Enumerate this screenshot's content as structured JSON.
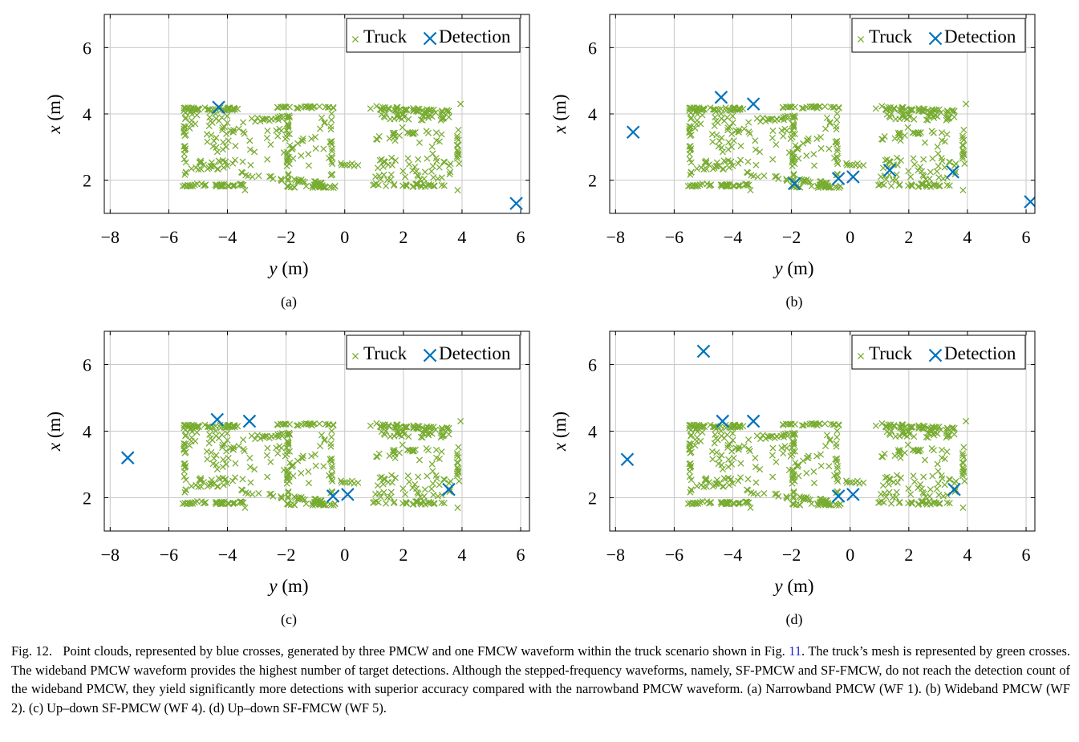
{
  "chart_data": [
    {
      "type": "scatter",
      "panel_label": "(a)",
      "xlabel_var": "y",
      "xlabel_unit": "(m)",
      "ylabel_var": "x",
      "ylabel_unit": "(m)",
      "xlim": [
        -8.2,
        6.3
      ],
      "ylim": [
        1.0,
        7.0
      ],
      "xticks": [
        -8,
        -6,
        -4,
        -2,
        0,
        2,
        4,
        6
      ],
      "yticks": [
        2,
        4,
        6
      ],
      "grid": true,
      "legend_position": "top-right",
      "series": [
        {
          "name": "Truck",
          "color": "#77ac30",
          "marker": "x-small",
          "generated": "truck_mesh"
        },
        {
          "name": "Detection",
          "color": "#0072bd",
          "marker": "x-large",
          "points": [
            [
              -4.3,
              4.2
            ],
            [
              5.85,
              1.3
            ]
          ]
        }
      ]
    },
    {
      "type": "scatter",
      "panel_label": "(b)",
      "xlabel_var": "y",
      "xlabel_unit": "(m)",
      "ylabel_var": "x",
      "ylabel_unit": "(m)",
      "xlim": [
        -8.2,
        6.3
      ],
      "ylim": [
        1.0,
        7.0
      ],
      "xticks": [
        -8,
        -6,
        -4,
        -2,
        0,
        2,
        4,
        6
      ],
      "yticks": [
        2,
        4,
        6
      ],
      "grid": true,
      "legend_position": "top-right",
      "series": [
        {
          "name": "Truck",
          "color": "#77ac30",
          "marker": "x-small",
          "generated": "truck_mesh"
        },
        {
          "name": "Detection",
          "color": "#0072bd",
          "marker": "x-large",
          "points": [
            [
              -7.4,
              3.45
            ],
            [
              -4.4,
              4.5
            ],
            [
              -3.3,
              4.3
            ],
            [
              -1.9,
              1.9
            ],
            [
              -0.4,
              2.05
            ],
            [
              0.1,
              2.1
            ],
            [
              1.35,
              2.3
            ],
            [
              3.5,
              2.25
            ],
            [
              6.15,
              1.35
            ]
          ]
        }
      ]
    },
    {
      "type": "scatter",
      "panel_label": "(c)",
      "xlabel_var": "y",
      "xlabel_unit": "(m)",
      "ylabel_var": "x",
      "ylabel_unit": "(m)",
      "xlim": [
        -8.2,
        6.3
      ],
      "ylim": [
        1.0,
        7.0
      ],
      "xticks": [
        -8,
        -6,
        -4,
        -2,
        0,
        2,
        4,
        6
      ],
      "yticks": [
        2,
        4,
        6
      ],
      "grid": true,
      "legend_position": "top-right",
      "series": [
        {
          "name": "Truck",
          "color": "#77ac30",
          "marker": "x-small",
          "generated": "truck_mesh"
        },
        {
          "name": "Detection",
          "color": "#0072bd",
          "marker": "x-large",
          "points": [
            [
              -7.4,
              3.2
            ],
            [
              -4.35,
              4.35
            ],
            [
              -3.25,
              4.3
            ],
            [
              -0.4,
              2.05
            ],
            [
              0.1,
              2.1
            ],
            [
              3.55,
              2.25
            ]
          ]
        }
      ]
    },
    {
      "type": "scatter",
      "panel_label": "(d)",
      "xlabel_var": "y",
      "xlabel_unit": "(m)",
      "ylabel_var": "x",
      "ylabel_unit": "(m)",
      "xlim": [
        -8.2,
        6.3
      ],
      "ylim": [
        1.0,
        7.0
      ],
      "xticks": [
        -8,
        -6,
        -4,
        -2,
        0,
        2,
        4,
        6
      ],
      "yticks": [
        2,
        4,
        6
      ],
      "grid": true,
      "legend_position": "top-right",
      "series": [
        {
          "name": "Truck",
          "color": "#77ac30",
          "marker": "x-small",
          "generated": "truck_mesh"
        },
        {
          "name": "Detection",
          "color": "#0072bd",
          "marker": "x-large",
          "points": [
            [
              -7.6,
              3.15
            ],
            [
              -5.0,
              6.4
            ],
            [
              -4.35,
              4.3
            ],
            [
              -3.3,
              4.3
            ],
            [
              -0.4,
              2.05
            ],
            [
              0.1,
              2.1
            ],
            [
              3.55,
              2.25
            ]
          ]
        }
      ]
    }
  ],
  "caption": {
    "label": "Fig. 12.",
    "text_before_ref": "Point clouds, represented by blue crosses, generated by three PMCW and one FMCW waveform within the truck scenario shown in Fig.",
    "ref": "11",
    "text_after_ref": ". The truck’s mesh is represented by green crosses. The wideband PMCW waveform provides the highest number of target detections. Although the stepped-frequency waveforms, namely, SF-PMCW and SF-FMCW, do not reach the detection count of the wideband PMCW, they yield significantly more detections with superior accuracy compared with the narrowband PMCW waveform. (a) Narrowband PMCW (WF 1). (b) Wideband PMCW (WF 2). (c) Up–down SF-PMCW (WF 4). (d) Up–down SF-FMCW (WF 5)."
  }
}
